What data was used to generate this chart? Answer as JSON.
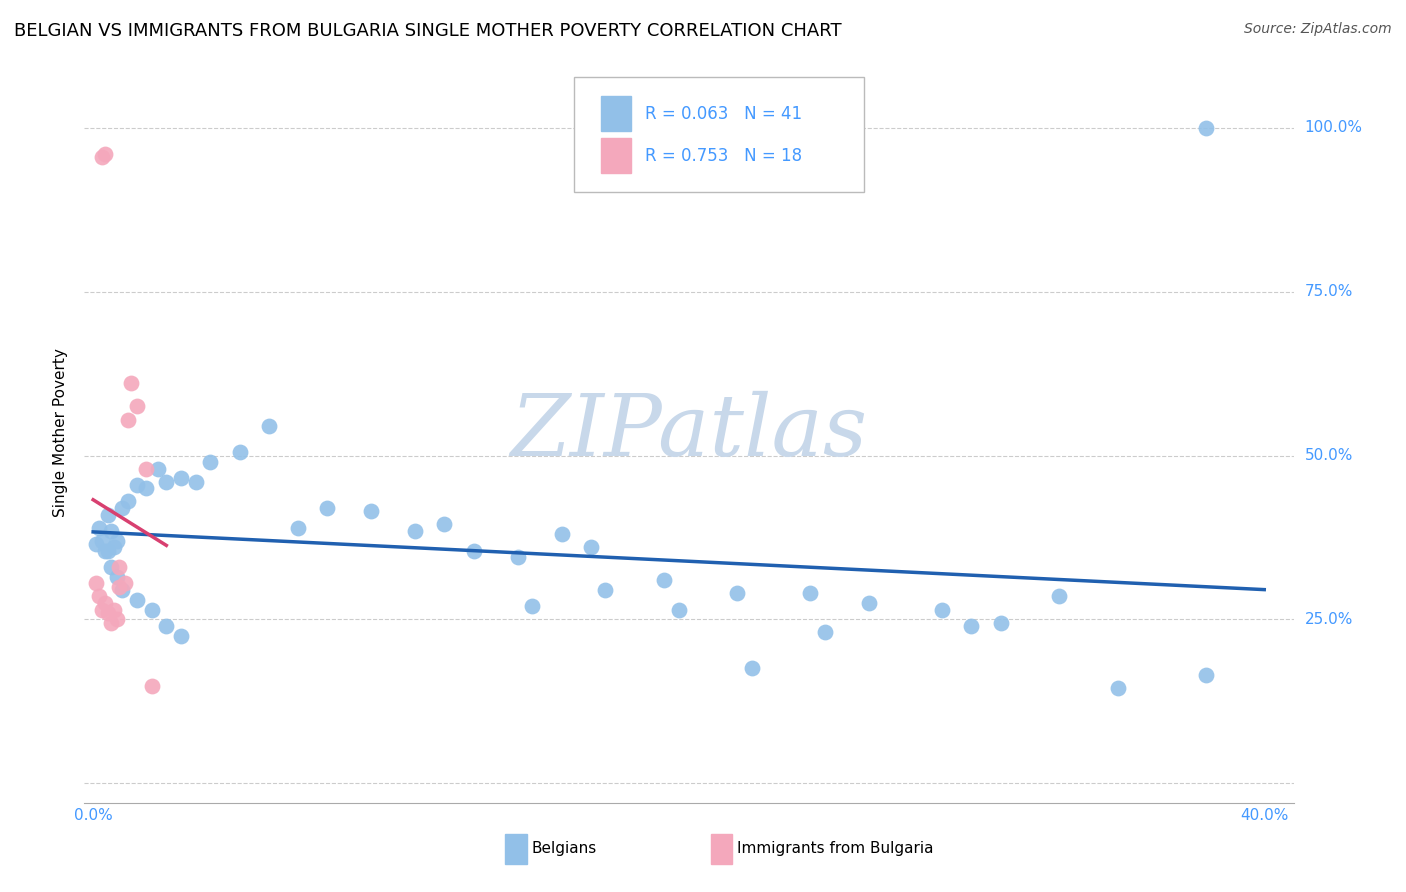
{
  "title": "BELGIAN VS IMMIGRANTS FROM BULGARIA SINGLE MOTHER POVERTY CORRELATION CHART",
  "source": "Source: ZipAtlas.com",
  "ylabel": "Single Mother Poverty",
  "xlim": [
    -0.003,
    0.41
  ],
  "ylim": [
    -0.03,
    1.1
  ],
  "belgians_x": [
    0.001,
    0.002,
    0.003,
    0.004,
    0.005,
    0.006,
    0.007,
    0.008,
    0.01,
    0.012,
    0.015,
    0.018,
    0.022,
    0.025,
    0.03,
    0.035,
    0.04,
    0.05,
    0.06,
    0.07,
    0.08,
    0.095,
    0.11,
    0.12,
    0.13,
    0.145,
    0.16,
    0.17,
    0.195,
    0.22,
    0.245,
    0.29,
    0.33,
    0.265,
    0.31,
    0.38
  ],
  "belgians_y": [
    0.365,
    0.39,
    0.37,
    0.355,
    0.41,
    0.385,
    0.36,
    0.37,
    0.42,
    0.43,
    0.455,
    0.45,
    0.48,
    0.46,
    0.465,
    0.46,
    0.49,
    0.505,
    0.545,
    0.39,
    0.42,
    0.415,
    0.385,
    0.395,
    0.355,
    0.345,
    0.38,
    0.36,
    0.31,
    0.29,
    0.29,
    0.265,
    0.285,
    0.275,
    0.245,
    1.0
  ],
  "belgians_x2": [
    0.005,
    0.006,
    0.008,
    0.01,
    0.015,
    0.02,
    0.025,
    0.03,
    0.15,
    0.2,
    0.25,
    0.3,
    0.35,
    0.38,
    0.175,
    0.225
  ],
  "belgians_y2": [
    0.355,
    0.33,
    0.315,
    0.295,
    0.28,
    0.265,
    0.24,
    0.225,
    0.27,
    0.265,
    0.23,
    0.24,
    0.145,
    0.165,
    0.295,
    0.175
  ],
  "bulgaria_x": [
    0.001,
    0.002,
    0.003,
    0.004,
    0.005,
    0.006,
    0.007,
    0.008,
    0.003,
    0.004,
    0.012,
    0.013,
    0.015,
    0.018,
    0.009,
    0.011,
    0.02,
    0.009
  ],
  "bulgaria_y": [
    0.305,
    0.285,
    0.265,
    0.275,
    0.26,
    0.245,
    0.265,
    0.25,
    0.955,
    0.96,
    0.555,
    0.61,
    0.575,
    0.48,
    0.33,
    0.305,
    0.148,
    0.3
  ],
  "R_belgians": 0.063,
  "N_belgians": 41,
  "R_bulgaria": 0.753,
  "N_bulgaria": 18,
  "color_belgians": "#92c0e8",
  "color_bulgaria": "#f4a8bc",
  "line_color_belgians": "#2060b0",
  "line_color_bulgaria": "#d84070",
  "watermark_color": "#c8d8ea",
  "background_color": "#ffffff",
  "grid_color": "#cccccc",
  "legend_color": "#4499ff",
  "title_fontsize": 13,
  "axis_label_fontsize": 11,
  "tick_fontsize": 11,
  "source_fontsize": 10
}
